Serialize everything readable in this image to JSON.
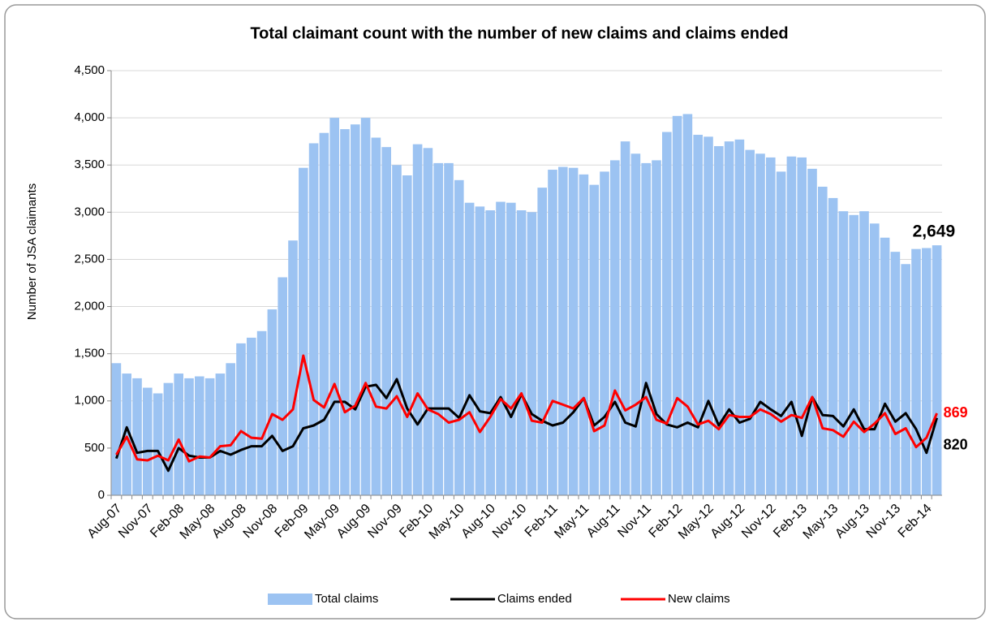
{
  "chart_data": {
    "type": "bar_line",
    "title": "Total claimant count with the number of new claims and claims ended",
    "ylabel": "Number of JSA claimants",
    "categories": [
      "Aug-07",
      null,
      null,
      "Nov-07",
      null,
      null,
      "Feb-08",
      null,
      null,
      "May-08",
      null,
      null,
      "Aug-08",
      null,
      null,
      "Nov-08",
      null,
      null,
      "Feb-09",
      null,
      null,
      "May-09",
      null,
      null,
      "Aug-09",
      null,
      null,
      "Nov-09",
      null,
      null,
      "Feb-10",
      null,
      null,
      "May-10",
      null,
      null,
      "Aug-10",
      null,
      null,
      "Nov-10",
      null,
      null,
      "Feb-11",
      null,
      null,
      "May-11",
      null,
      null,
      "Aug-11",
      null,
      null,
      "Nov-11",
      null,
      null,
      "Feb-12",
      null,
      null,
      "May-12",
      null,
      null,
      "Aug-12",
      null,
      null,
      "Nov-12",
      null,
      null,
      "Feb-13",
      null,
      null,
      "May-13",
      null,
      null,
      "Aug-13",
      null,
      null,
      "Nov-13",
      null,
      null,
      "Feb-14",
      null
    ],
    "series": [
      {
        "name": "Total claims",
        "kind": "bar",
        "color": "#9cc3f2",
        "values": [
          1400,
          1290,
          1240,
          1140,
          1080,
          1190,
          1290,
          1240,
          1260,
          1240,
          1290,
          1400,
          1610,
          1670,
          1740,
          1970,
          2310,
          2700,
          3470,
          3730,
          3840,
          4000,
          3880,
          3930,
          4000,
          3790,
          3690,
          3500,
          3390,
          3720,
          3680,
          3520,
          3520,
          3340,
          3100,
          3060,
          3020,
          3110,
          3100,
          3020,
          3000,
          3260,
          3450,
          3480,
          3470,
          3400,
          3290,
          3430,
          3550,
          3750,
          3620,
          3520,
          3550,
          3850,
          4020,
          4040,
          3820,
          3800,
          3700,
          3750,
          3770,
          3660,
          3620,
          3580,
          3430,
          3590,
          3580,
          3460,
          3270,
          3150,
          3010,
          2970,
          3010,
          2880,
          2730,
          2580,
          2450,
          2610,
          2620,
          2649
        ],
        "value_labels": [
          null,
          null,
          null,
          null,
          null,
          null,
          null,
          null,
          null,
          null,
          null,
          null,
          null,
          null,
          null,
          null,
          null,
          null,
          null,
          null,
          null,
          null,
          null,
          null,
          null,
          null,
          null,
          null,
          null,
          null,
          null,
          null,
          null,
          null,
          null,
          null,
          null,
          null,
          null,
          null,
          null,
          null,
          null,
          null,
          null,
          null,
          null,
          null,
          null,
          null,
          null,
          null,
          null,
          null,
          null,
          null,
          null,
          null,
          null,
          null,
          null,
          null,
          null,
          null,
          null,
          null,
          null,
          null,
          null,
          null,
          null,
          null,
          null,
          null,
          null,
          null,
          null,
          null,
          null,
          "2,649"
        ]
      },
      {
        "name": "Claims ended",
        "kind": "line",
        "color": "#000000",
        "values": [
          390,
          720,
          450,
          470,
          470,
          260,
          500,
          420,
          400,
          400,
          470,
          430,
          480,
          520,
          520,
          630,
          470,
          520,
          710,
          740,
          800,
          990,
          990,
          910,
          1150,
          1170,
          1030,
          1230,
          920,
          750,
          920,
          920,
          920,
          820,
          1060,
          890,
          870,
          1040,
          830,
          1070,
          860,
          790,
          740,
          770,
          880,
          1030,
          740,
          830,
          990,
          770,
          730,
          1190,
          860,
          750,
          720,
          770,
          720,
          1000,
          740,
          910,
          770,
          810,
          990,
          910,
          840,
          990,
          630,
          1040,
          850,
          840,
          730,
          910,
          700,
          700,
          970,
          780,
          870,
          700,
          450,
          820
        ],
        "value_labels": [
          null,
          null,
          null,
          null,
          null,
          null,
          null,
          null,
          null,
          null,
          null,
          null,
          null,
          null,
          null,
          null,
          null,
          null,
          null,
          null,
          null,
          null,
          null,
          null,
          null,
          null,
          null,
          null,
          null,
          null,
          null,
          null,
          null,
          null,
          null,
          null,
          null,
          null,
          null,
          null,
          null,
          null,
          null,
          null,
          null,
          null,
          null,
          null,
          null,
          null,
          null,
          null,
          null,
          null,
          null,
          null,
          null,
          null,
          null,
          null,
          null,
          null,
          null,
          null,
          null,
          null,
          null,
          null,
          null,
          null,
          null,
          null,
          null,
          null,
          null,
          null,
          null,
          null,
          null,
          "820"
        ]
      },
      {
        "name": "New claims",
        "kind": "line",
        "color": "#ff0000",
        "values": [
          430,
          620,
          380,
          370,
          420,
          370,
          590,
          360,
          410,
          400,
          520,
          530,
          680,
          610,
          600,
          860,
          800,
          910,
          1480,
          1010,
          930,
          1180,
          880,
          950,
          1190,
          940,
          920,
          1050,
          830,
          1080,
          910,
          860,
          770,
          800,
          880,
          670,
          830,
          1020,
          920,
          1080,
          790,
          770,
          1000,
          960,
          920,
          1030,
          680,
          740,
          1110,
          900,
          960,
          1040,
          800,
          760,
          1030,
          940,
          750,
          790,
          700,
          850,
          830,
          830,
          910,
          860,
          780,
          850,
          820,
          1040,
          710,
          690,
          620,
          780,
          670,
          760,
          870,
          650,
          710,
          510,
          610,
          869
        ],
        "value_labels": [
          null,
          null,
          null,
          null,
          null,
          null,
          null,
          null,
          null,
          null,
          null,
          null,
          null,
          null,
          null,
          null,
          null,
          null,
          null,
          null,
          null,
          null,
          null,
          null,
          null,
          null,
          null,
          null,
          null,
          null,
          null,
          null,
          null,
          null,
          null,
          null,
          null,
          null,
          null,
          null,
          null,
          null,
          null,
          null,
          null,
          null,
          null,
          null,
          null,
          null,
          null,
          null,
          null,
          null,
          null,
          null,
          null,
          null,
          null,
          null,
          null,
          null,
          null,
          null,
          null,
          null,
          null,
          null,
          null,
          null,
          null,
          null,
          null,
          null,
          null,
          null,
          null,
          null,
          null,
          "869"
        ]
      }
    ],
    "ylim": [
      0,
      4500
    ],
    "yticks": [
      0,
      500,
      {
        "value": 1000,
        "label": "1,000"
      },
      {
        "value": 1500,
        "label": "1,500"
      },
      {
        "value": 2000,
        "label": "2,000"
      },
      {
        "value": 2500,
        "label": "2,500"
      },
      {
        "value": 3000,
        "label": "3,000"
      },
      {
        "value": 3500,
        "label": "3,500"
      },
      {
        "value": 4000,
        "label": "4,000"
      },
      {
        "value": 4500,
        "label": "4,500"
      }
    ],
    "grid": true,
    "legend": "bottom"
  }
}
